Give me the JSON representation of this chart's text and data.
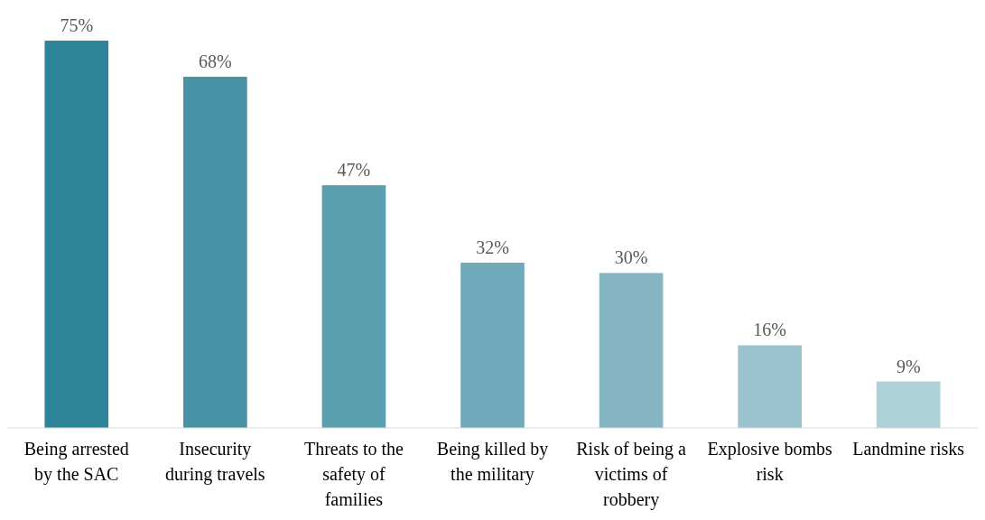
{
  "chart_data": {
    "type": "bar",
    "categories": [
      "Being arrested by the SAC",
      "Insecurity during travels",
      "Threats to the safety of families",
      "Being killed by the military",
      "Risk of being a victims of robbery",
      "Explosive bombs risk",
      "Landmine risks"
    ],
    "values": [
      75,
      68,
      47,
      32,
      30,
      16,
      9
    ],
    "colors": [
      "#2e8499",
      "#4693a6",
      "#5a9fae",
      "#70a9ba",
      "#85b4c2",
      "#9bc3cf",
      "#aed0d7"
    ],
    "data_labels": true,
    "value_labels": [
      "75%",
      "68%",
      "47%",
      "32%",
      "30%",
      "16%",
      "9%"
    ]
  }
}
